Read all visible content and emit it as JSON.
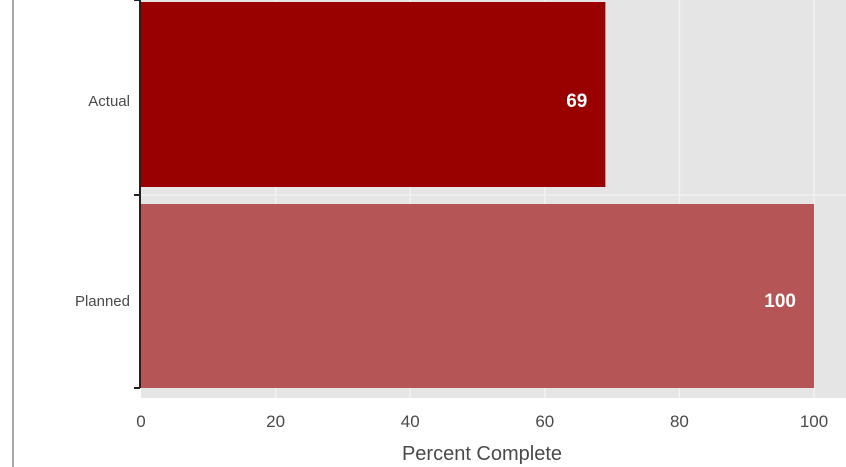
{
  "chart_data": {
    "type": "bar",
    "orientation": "horizontal",
    "categories": [
      "Actual",
      "Planned"
    ],
    "values": [
      69,
      100
    ],
    "data_labels": [
      "69",
      "100"
    ],
    "bar_colors": [
      "#990000",
      "#b55555"
    ],
    "xlabel": "Percent Complete",
    "ylabel": "",
    "title": "",
    "xlim": [
      0,
      100
    ],
    "xticks": [
      "0",
      "20",
      "40",
      "60",
      "80",
      "100"
    ],
    "grid": true,
    "legend": "none",
    "background_color": "#e5e5e5",
    "grid_color": "#f2f2f2"
  }
}
